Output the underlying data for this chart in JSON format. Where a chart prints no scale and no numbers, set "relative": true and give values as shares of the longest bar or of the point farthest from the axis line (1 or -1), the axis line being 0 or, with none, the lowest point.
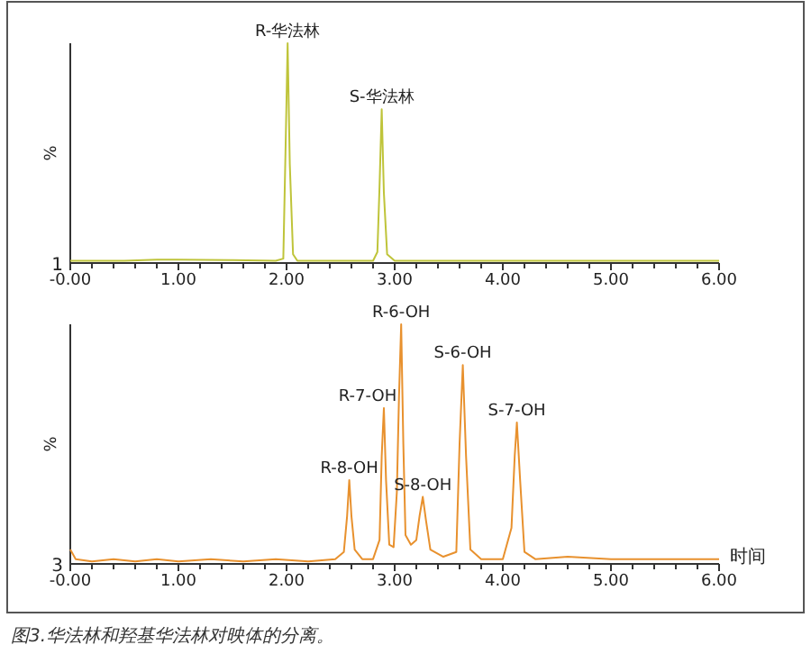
{
  "chart_data": [
    {
      "type": "line",
      "relative": true,
      "ylabel": "%",
      "color": "#bfc43a",
      "xlim": [
        0,
        6
      ],
      "xticks": [
        {
          "value": 0,
          "label": "-0.00"
        },
        {
          "value": 0.2,
          "label": null
        },
        {
          "value": 0.4,
          "label": null
        },
        {
          "value": 0.6,
          "label": null
        },
        {
          "value": 0.8,
          "label": null
        },
        {
          "value": 1,
          "label": "1.00"
        },
        {
          "value": 1.2,
          "label": null
        },
        {
          "value": 1.4,
          "label": null
        },
        {
          "value": 1.6,
          "label": null
        },
        {
          "value": 1.8,
          "label": null
        },
        {
          "value": 2,
          "label": "2.00"
        },
        {
          "value": 2.2,
          "label": null
        },
        {
          "value": 2.4,
          "label": null
        },
        {
          "value": 2.6,
          "label": null
        },
        {
          "value": 2.8,
          "label": null
        },
        {
          "value": 3,
          "label": "3.00"
        },
        {
          "value": 3.2,
          "label": null
        },
        {
          "value": 3.4,
          "label": null
        },
        {
          "value": 3.6,
          "label": null
        },
        {
          "value": 3.8,
          "label": null
        },
        {
          "value": 4,
          "label": "4.00"
        },
        {
          "value": 4.2,
          "label": null
        },
        {
          "value": 4.4,
          "label": null
        },
        {
          "value": 4.6,
          "label": null
        },
        {
          "value": 4.8,
          "label": null
        },
        {
          "value": 5,
          "label": "5.00"
        },
        {
          "value": 5.2,
          "label": null
        },
        {
          "value": 5.4,
          "label": null
        },
        {
          "value": 5.6,
          "label": null
        },
        {
          "value": 5.8,
          "label": null
        },
        {
          "value": 6,
          "label": "6.00"
        }
      ],
      "x": [
        0,
        0.5,
        0.8,
        1.0,
        1.5,
        1.9,
        1.97,
        1.99,
        2.01,
        2.03,
        2.06,
        2.1,
        2.5,
        2.8,
        2.84,
        2.86,
        2.88,
        2.9,
        2.93,
        3.0,
        4,
        5,
        6
      ],
      "values": [
        0.01,
        0.01,
        0.015,
        0.015,
        0.013,
        0.01,
        0.02,
        0.5,
        1,
        0.45,
        0.04,
        0.01,
        0.01,
        0.01,
        0.05,
        0.35,
        0.7,
        0.32,
        0.04,
        0.01,
        0.01,
        0.01,
        0.01
      ],
      "annotations": [
        "1",
        {
          "text": "R-华法林",
          "x": 2.01,
          "y": 1
        },
        {
          "text": "S-华法林",
          "x": 2.88,
          "y": 0.7
        }
      ]
    },
    {
      "type": "line",
      "relative": true,
      "ylabel": "%",
      "xlabel": "时间",
      "color": "#e8912e",
      "xlim": [
        0,
        6
      ],
      "xticks": [
        {
          "value": 0,
          "label": "-0.00"
        },
        {
          "value": 0.2,
          "label": null
        },
        {
          "value": 0.4,
          "label": null
        },
        {
          "value": 0.6,
          "label": null
        },
        {
          "value": 0.8,
          "label": null
        },
        {
          "value": 1,
          "label": "1.00"
        },
        {
          "value": 1.2,
          "label": null
        },
        {
          "value": 1.4,
          "label": null
        },
        {
          "value": 1.6,
          "label": null
        },
        {
          "value": 1.8,
          "label": null
        },
        {
          "value": 2,
          "label": "2.00"
        },
        {
          "value": 2.2,
          "label": null
        },
        {
          "value": 2.4,
          "label": null
        },
        {
          "value": 2.6,
          "label": null
        },
        {
          "value": 2.8,
          "label": null
        },
        {
          "value": 3,
          "label": "3.00"
        },
        {
          "value": 3.2,
          "label": null
        },
        {
          "value": 3.4,
          "label": null
        },
        {
          "value": 3.6,
          "label": null
        },
        {
          "value": 3.8,
          "label": null
        },
        {
          "value": 4,
          "label": "4.00"
        },
        {
          "value": 4.2,
          "label": null
        },
        {
          "value": 4.4,
          "label": null
        },
        {
          "value": 4.6,
          "label": null
        },
        {
          "value": 4.8,
          "label": null
        },
        {
          "value": 5,
          "label": "5.00"
        },
        {
          "value": 5.2,
          "label": null
        },
        {
          "value": 5.4,
          "label": null
        },
        {
          "value": 5.6,
          "label": null
        },
        {
          "value": 5.8,
          "label": null
        },
        {
          "value": 6,
          "label": "6.00"
        }
      ],
      "x": [
        0,
        0.05,
        0.2,
        0.4,
        0.6,
        0.8,
        1.0,
        1.3,
        1.6,
        1.9,
        2.2,
        2.45,
        2.53,
        2.56,
        2.58,
        2.6,
        2.63,
        2.7,
        2.8,
        2.86,
        2.88,
        2.9,
        2.92,
        2.95,
        2.99,
        3.02,
        3.04,
        3.06,
        3.08,
        3.1,
        3.15,
        3.2,
        3.23,
        3.26,
        3.29,
        3.33,
        3.45,
        3.57,
        3.6,
        3.63,
        3.66,
        3.7,
        3.8,
        4.0,
        4.08,
        4.11,
        4.13,
        4.16,
        4.2,
        4.3,
        4.6,
        5.0,
        5.5,
        6.0
      ],
      "values": [
        0.06,
        0.02,
        0.01,
        0.02,
        0.01,
        0.02,
        0.01,
        0.02,
        0.01,
        0.02,
        0.01,
        0.02,
        0.05,
        0.2,
        0.35,
        0.2,
        0.06,
        0.02,
        0.02,
        0.1,
        0.45,
        0.65,
        0.35,
        0.08,
        0.07,
        0.3,
        0.7,
        1,
        0.5,
        0.12,
        0.08,
        0.1,
        0.2,
        0.28,
        0.18,
        0.06,
        0.03,
        0.05,
        0.5,
        0.83,
        0.45,
        0.06,
        0.02,
        0.02,
        0.15,
        0.45,
        0.59,
        0.35,
        0.05,
        0.02,
        0.03,
        0.02,
        0.02,
        0.02
      ],
      "annotations": [
        "3",
        "图3.华法林和羟基华法林对映体的分离。",
        {
          "text": "R-8-OH",
          "x": 2.58,
          "y": 0.35
        },
        {
          "text": "R-7-OH",
          "x": 2.9,
          "y": 0.65
        },
        {
          "text": "R-6-OH",
          "x": 3.06,
          "y": 1
        },
        {
          "text": "S-8-OH",
          "x": 3.26,
          "y": 0.28
        },
        {
          "text": "S-6-OH",
          "x": 3.63,
          "y": 0.83
        },
        {
          "text": "S-7-OH",
          "x": 4.13,
          "y": 0.59
        }
      ]
    }
  ]
}
